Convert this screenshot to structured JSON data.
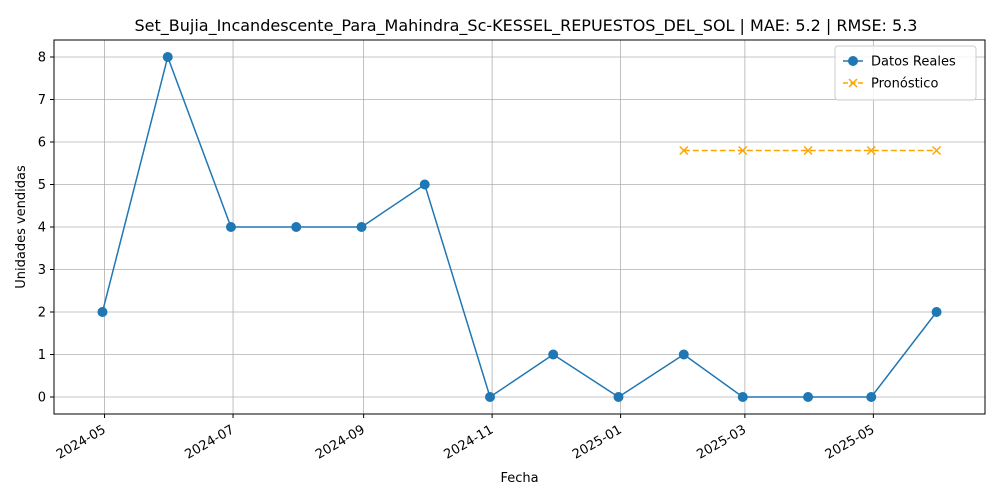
{
  "chart_data": {
    "type": "line",
    "title": "Set_Bujia_Incandescente_Para_Mahindra_Sc-KESSEL_REPUESTOS_DEL_SOL | MAE: 5.2 | RMSE: 5.3",
    "xlabel": "Fecha",
    "ylabel": "Unidades vendidas",
    "xlim": [
      "2024-04-07",
      "2025-06-23"
    ],
    "ylim": [
      -0.4,
      8.4
    ],
    "x_ticks": [
      "2024-05",
      "2024-07",
      "2024-09",
      "2024-11",
      "2025-01",
      "2025-03",
      "2025-05"
    ],
    "x_tick_dates": [
      "2024-05-01",
      "2024-07-01",
      "2024-09-01",
      "2024-11-01",
      "2025-01-01",
      "2025-03-01",
      "2025-05-01"
    ],
    "y_ticks": [
      0,
      1,
      2,
      3,
      4,
      5,
      6,
      7,
      8
    ],
    "grid": true,
    "legend_position": "top-right",
    "series": [
      {
        "name": "Datos Reales",
        "color": "#1f77b4",
        "marker": "circle",
        "linestyle": "solid",
        "x": [
          "2024-04-30",
          "2024-05-31",
          "2024-06-30",
          "2024-07-31",
          "2024-08-31",
          "2024-09-30",
          "2024-10-31",
          "2024-11-30",
          "2024-12-31",
          "2025-01-31",
          "2025-02-28",
          "2025-03-31",
          "2025-04-30",
          "2025-05-31"
        ],
        "values": [
          2,
          8,
          4,
          4,
          4,
          5,
          0,
          1,
          0,
          1,
          0,
          0,
          0,
          2
        ]
      },
      {
        "name": "Pronóstico",
        "color": "#ffa500",
        "marker": "x",
        "linestyle": "dashed",
        "x": [
          "2025-01-31",
          "2025-02-28",
          "2025-03-31",
          "2025-04-30",
          "2025-05-31"
        ],
        "values": [
          5.8,
          5.8,
          5.8,
          5.8,
          5.8
        ]
      }
    ]
  }
}
